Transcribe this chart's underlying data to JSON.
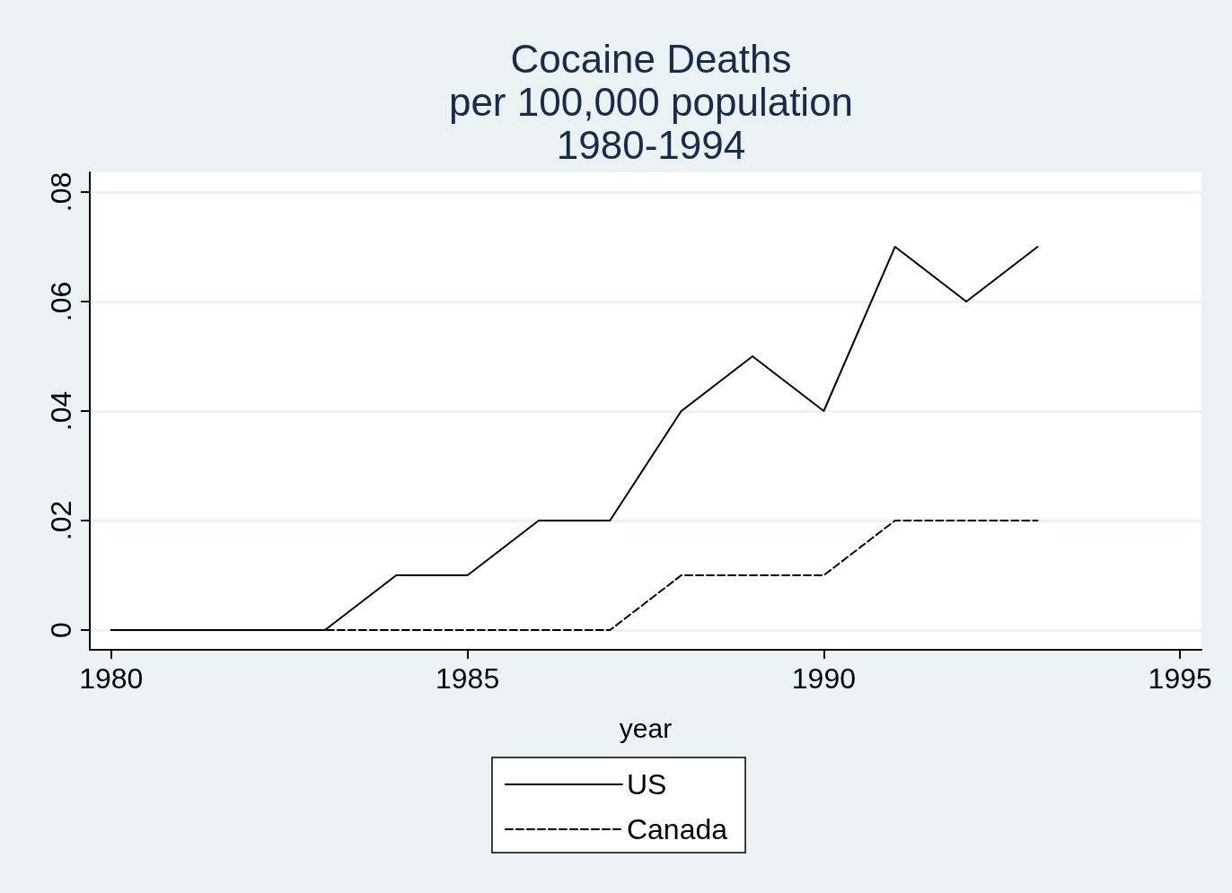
{
  "chart_data": {
    "type": "line",
    "title": "Cocaine Deaths\nper 100,000 population\n1980-1994",
    "xlabel": "year",
    "x": [
      1980,
      1981,
      1982,
      1983,
      1984,
      1985,
      1986,
      1987,
      1988,
      1989,
      1990,
      1991,
      1992,
      1993
    ],
    "series": [
      {
        "name": "US",
        "color": "#000000",
        "line_style": "solid",
        "values": [
          0,
          0,
          0,
          0,
          0.01,
          0.01,
          0.02,
          0.02,
          0.04,
          0.05,
          0.04,
          0.07,
          0.06,
          0.07
        ]
      },
      {
        "name": "Canada",
        "color": "#000000",
        "line_style": "dashed",
        "values": [
          0,
          0,
          0,
          0,
          0,
          0,
          0,
          0,
          0.01,
          0.01,
          0.01,
          0.02,
          0.02,
          0.02
        ]
      }
    ],
    "xlim": [
      1979.7,
      1995.3
    ],
    "xticks": [
      1980,
      1985,
      1990,
      1995
    ],
    "ylim": [
      -0.0036,
      0.0836
    ],
    "yticks": [
      {
        "value": 0,
        "label": "0"
      },
      {
        "value": 0.02,
        "label": ".02"
      },
      {
        "value": 0.04,
        "label": ".04"
      },
      {
        "value": 0.06,
        "label": ".06"
      },
      {
        "value": 0.08,
        "label": ".08"
      }
    ],
    "grid": "y",
    "legend": "bottom",
    "marker": "none"
  }
}
